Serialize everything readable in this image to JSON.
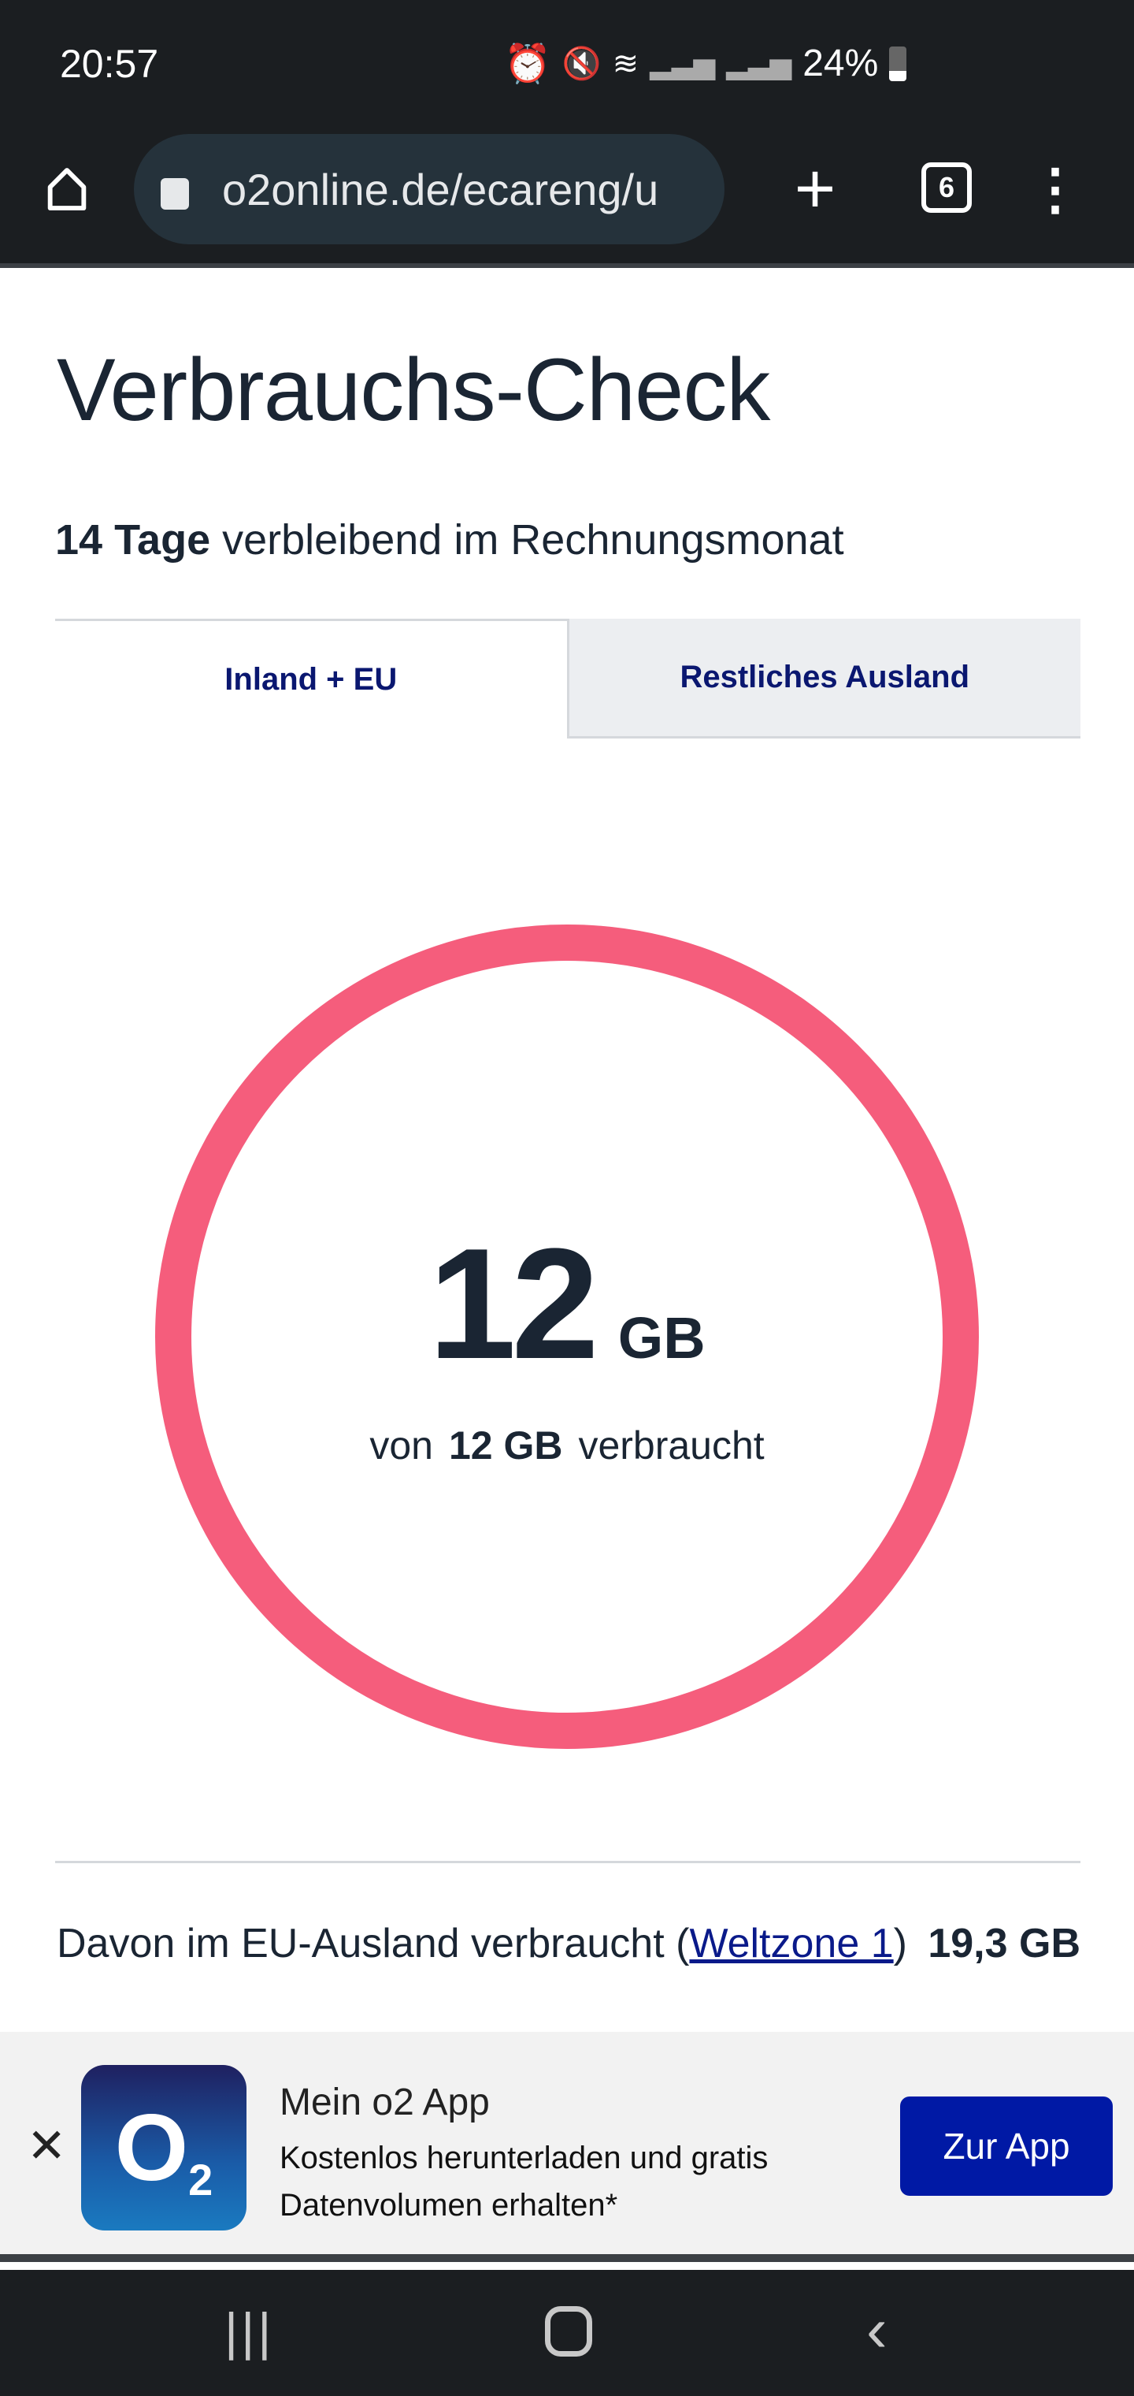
{
  "status_bar": {
    "time": "20:57",
    "battery": "24%",
    "icons": [
      "alarm-icon",
      "mute-icon",
      "wifi-icon",
      "signal-icon",
      "signal-icon",
      "battery-icon"
    ]
  },
  "browser": {
    "url": "o2online.de/ecareng/u",
    "tab_count": "6",
    "icons": [
      "home-icon",
      "lock-icon",
      "plus-icon",
      "tabs-icon",
      "more-icon"
    ]
  },
  "page": {
    "title": "Verbrauchs-Check",
    "remaining_bold": "14 Tage",
    "remaining_text": " verbleibend im Rechnungsmonat",
    "tabs": [
      {
        "label": "Inland + EU",
        "active": true
      },
      {
        "label": "Restliches Ausland",
        "active": false
      }
    ],
    "usage": {
      "amount": "12",
      "unit": "GB",
      "of_prefix": "von",
      "total": "12 GB",
      "suffix": "verbraucht",
      "percent_used": 100,
      "ring_color": "#f55d7c"
    },
    "eu": {
      "label_prefix": "Davon im EU-Ausland verbraucht (",
      "link": "Weltzone 1",
      "label_suffix": ")",
      "value": "19,3 GB"
    }
  },
  "banner": {
    "title": "Mein o2 App",
    "text": "Kostenlos herunterladen und gratis Datenvolumen erhalten*",
    "button": "Zur App",
    "logo": "O2",
    "button_color": "#0019a5"
  },
  "nav": {
    "icons": [
      "recent-apps-icon",
      "home-icon",
      "back-icon"
    ]
  }
}
